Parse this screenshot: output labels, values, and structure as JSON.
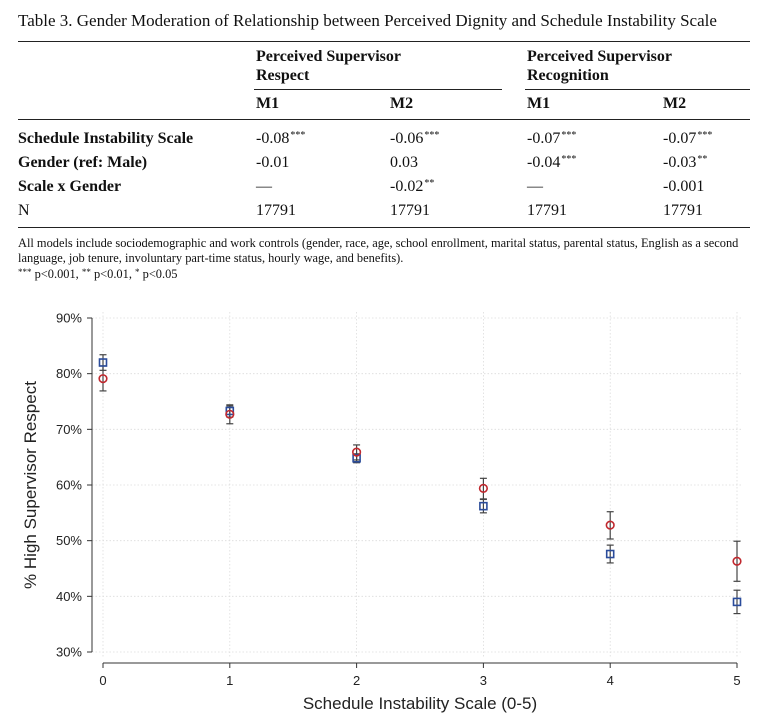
{
  "table": {
    "caption": "Table 3. Gender Moderation of Relationship between Perceived Dignity and Schedule Instability Scale",
    "groups": [
      "Perceived Supervisor Respect",
      "Perceived Supervisor Recognition"
    ],
    "group_lines": [
      [
        "Perceived Supervisor",
        "Respect"
      ],
      [
        "Perceived Supervisor",
        "Recognition"
      ]
    ],
    "models": [
      "M1",
      "M2",
      "M1",
      "M2"
    ],
    "rows": [
      {
        "label": "Schedule Instability Scale",
        "cells": [
          {
            "v": "-0.08",
            "s": "***"
          },
          {
            "v": "-0.06",
            "s": "***"
          },
          {
            "v": "-0.07",
            "s": "***"
          },
          {
            "v": "-0.07",
            "s": "***"
          }
        ]
      },
      {
        "label": "Gender (ref: Male)",
        "cells": [
          {
            "v": "-0.01",
            "s": ""
          },
          {
            "v": "0.03",
            "s": ""
          },
          {
            "v": "-0.04",
            "s": "***"
          },
          {
            "v": "-0.03",
            "s": "**"
          }
        ]
      },
      {
        "label": "Scale x Gender",
        "cells": [
          {
            "v": "—",
            "s": ""
          },
          {
            "v": "-0.02",
            "s": "**"
          },
          {
            "v": "—",
            "s": ""
          },
          {
            "v": "-0.001",
            "s": ""
          }
        ]
      },
      {
        "label": "N",
        "cells": [
          {
            "v": "17791",
            "s": ""
          },
          {
            "v": "17791",
            "s": ""
          },
          {
            "v": "17791",
            "s": ""
          },
          {
            "v": "17791",
            "s": ""
          }
        ]
      }
    ],
    "note": "All models include sociodemographic and work controls (gender, race, age, school enrollment, marital status, parental status, English as a second language, job tenure, involuntary part-time status, hourly wage, and benefits).",
    "sig_note": "*** p<0.001, ** p<0.01, * p<0.05"
  },
  "chart_data": {
    "type": "scatter",
    "xlabel": "Schedule Instability Scale (0-5)",
    "ylabel": "% High Supervisor Respect",
    "x": [
      0,
      1,
      2,
      3,
      4,
      5
    ],
    "xlim": [
      0,
      5
    ],
    "ylim": [
      30,
      90
    ],
    "yticks": [
      30,
      40,
      50,
      60,
      70,
      80,
      90
    ],
    "ytick_labels": [
      "30%",
      "40%",
      "50%",
      "60%",
      "70%",
      "80%",
      "90%"
    ],
    "grid": true,
    "series": [
      {
        "marker": "square",
        "color": "#2b4c9b",
        "values": [
          82.0,
          73.3,
          64.8,
          56.2,
          47.6,
          39.0
        ],
        "ci_low": [
          80.6,
          72.2,
          64.0,
          55.0,
          46.0,
          36.9
        ],
        "ci_high": [
          83.4,
          74.4,
          65.6,
          57.4,
          49.2,
          41.1
        ]
      },
      {
        "marker": "circle",
        "color": "#c0282e",
        "values": [
          79.1,
          72.7,
          65.9,
          59.4,
          52.8,
          46.3
        ],
        "ci_low": [
          76.9,
          71.0,
          64.5,
          57.5,
          50.3,
          42.7
        ],
        "ci_high": [
          81.4,
          74.2,
          67.2,
          61.2,
          55.2,
          49.9
        ]
      }
    ]
  }
}
